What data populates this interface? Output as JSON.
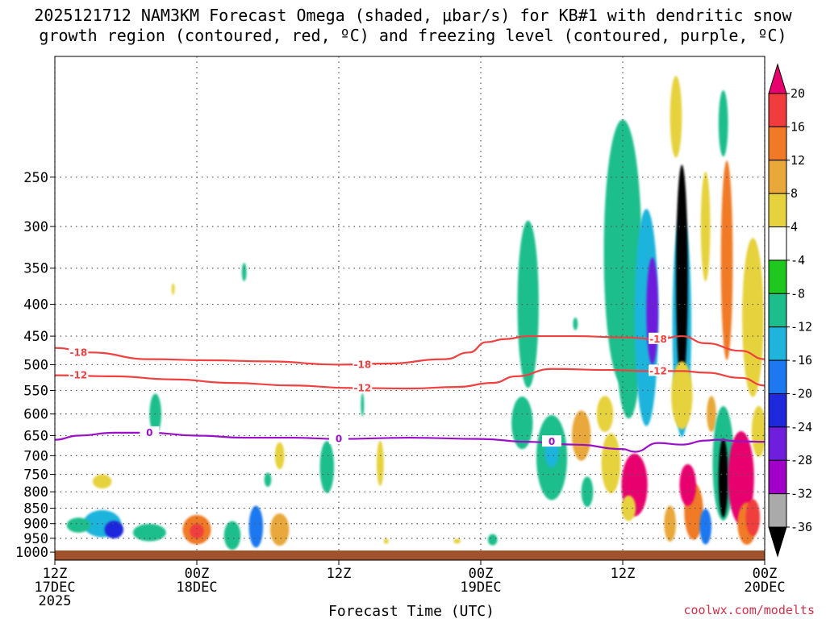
{
  "chart_data": {
    "type": "heatmap",
    "title_line1": "2025121712 NAM3KM Forecast Omega (shaded, μbar/s) for KB#1 with dendritic snow",
    "title_line2": "growth region (contoured, red, ºC) and freezing level (contoured, purple, ºC)",
    "xlabel": "Forecast Time (UTC)",
    "credit": "coolwx.com/modelts",
    "x_range_hours": [
      0,
      60
    ],
    "y_range_hpa": [
      1030,
      160
    ],
    "x_ticks": [
      {
        "hour": 0,
        "line1": "12Z",
        "line2": "17DEC",
        "line3": "2025"
      },
      {
        "hour": 12,
        "line1": "00Z",
        "line2": "18DEC",
        "line3": ""
      },
      {
        "hour": 24,
        "line1": "12Z",
        "line2": "",
        "line3": ""
      },
      {
        "hour": 36,
        "line1": "00Z",
        "line2": "19DEC",
        "line3": ""
      },
      {
        "hour": 48,
        "line1": "12Z",
        "line2": "",
        "line3": ""
      },
      {
        "hour": 60,
        "line1": "00Z",
        "line2": "20DEC",
        "line3": ""
      }
    ],
    "y_ticks": [
      "250",
      "300",
      "350",
      "400",
      "450",
      "500",
      "550",
      "600",
      "650",
      "700",
      "750",
      "800",
      "850",
      "900",
      "950",
      "1000"
    ],
    "colorbar": {
      "labels": [
        "20",
        "16",
        "12",
        "8",
        "4",
        "-4",
        "-8",
        "-12",
        "-16",
        "-20",
        "-24",
        "-28",
        "-32",
        "-36"
      ],
      "colors": [
        "#e8006e",
        "#f03c3c",
        "#f07a28",
        "#e8a83a",
        "#e6d23c",
        "#ffffff",
        "#1ec81e",
        "#1ebe8c",
        "#1eb4dc",
        "#1e78f0",
        "#1e28dc",
        "#6e1edc",
        "#a000c8",
        "#aaaaaa",
        "#000000"
      ]
    },
    "contours": {
      "dgz_minus18": {
        "label": "-18",
        "color": "#f04040",
        "points": [
          [
            0,
            470
          ],
          [
            3,
            478
          ],
          [
            8,
            490
          ],
          [
            13,
            492
          ],
          [
            18,
            494
          ],
          [
            24,
            500
          ],
          [
            28,
            498
          ],
          [
            33,
            490
          ],
          [
            35,
            478
          ],
          [
            36.5,
            460
          ],
          [
            38,
            455
          ],
          [
            40,
            450
          ],
          [
            44,
            450
          ],
          [
            48,
            452
          ],
          [
            51,
            455
          ],
          [
            53,
            450
          ],
          [
            55,
            462
          ],
          [
            58,
            475
          ],
          [
            60,
            490
          ]
        ]
      },
      "dgz_minus12": {
        "label": "-12",
        "color": "#f04040",
        "points": [
          [
            0,
            520
          ],
          [
            5,
            522
          ],
          [
            10,
            528
          ],
          [
            15,
            535
          ],
          [
            20,
            540
          ],
          [
            25,
            545
          ],
          [
            30,
            546
          ],
          [
            34,
            543
          ],
          [
            37,
            535
          ],
          [
            39,
            522
          ],
          [
            42,
            508
          ],
          [
            47,
            510
          ],
          [
            50,
            512
          ],
          [
            53,
            512
          ],
          [
            55,
            515
          ],
          [
            58,
            525
          ],
          [
            60,
            540
          ]
        ]
      },
      "freezing_level": {
        "label": "0",
        "color": "#9a10c8",
        "points": [
          [
            0,
            660
          ],
          [
            2,
            650
          ],
          [
            5,
            643
          ],
          [
            8,
            643
          ],
          [
            12,
            650
          ],
          [
            16,
            655
          ],
          [
            20,
            655
          ],
          [
            24,
            658
          ],
          [
            30,
            655
          ],
          [
            36,
            658
          ],
          [
            40,
            665
          ],
          [
            44,
            672
          ],
          [
            48,
            683
          ],
          [
            49,
            690
          ],
          [
            51,
            668
          ],
          [
            53,
            672
          ],
          [
            55,
            662
          ],
          [
            56,
            660
          ],
          [
            58,
            664
          ],
          [
            60,
            665
          ]
        ]
      }
    },
    "shaded_features": [
      {
        "t": 4,
        "p": 900,
        "dt": 1.6,
        "dp": 45,
        "v": -14
      },
      {
        "t": 5,
        "p": 920,
        "dt": 0.8,
        "dp": 30,
        "v": -22
      },
      {
        "t": 2,
        "p": 905,
        "dt": 1.0,
        "dp": 25,
        "v": -10
      },
      {
        "t": 8,
        "p": 930,
        "dt": 1.4,
        "dp": 30,
        "v": -9
      },
      {
        "t": 12,
        "p": 920,
        "dt": 1.2,
        "dp": 50,
        "v": 12
      },
      {
        "t": 12,
        "p": 925,
        "dt": 0.6,
        "dp": 25,
        "v": 18
      },
      {
        "t": 15,
        "p": 940,
        "dt": 0.7,
        "dp": 50,
        "v": -10
      },
      {
        "t": 17,
        "p": 910,
        "dt": 0.6,
        "dp": 70,
        "v": -18
      },
      {
        "t": 19,
        "p": 920,
        "dt": 0.8,
        "dp": 55,
        "v": 10
      },
      {
        "t": 4,
        "p": 770,
        "dt": 0.8,
        "dp": 20,
        "v": 5
      },
      {
        "t": 8.5,
        "p": 600,
        "dt": 0.5,
        "dp": 45,
        "v": -9
      },
      {
        "t": 16,
        "p": 355,
        "dt": 0.2,
        "dp": 12,
        "v": -9
      },
      {
        "t": 10,
        "p": 378,
        "dt": 0.1,
        "dp": 8,
        "v": 5
      },
      {
        "t": 19,
        "p": 700,
        "dt": 0.4,
        "dp": 35,
        "v": 5
      },
      {
        "t": 23,
        "p": 730,
        "dt": 0.6,
        "dp": 70,
        "v": -9
      },
      {
        "t": 27.5,
        "p": 720,
        "dt": 0.3,
        "dp": 60,
        "v": 5
      },
      {
        "t": 26,
        "p": 580,
        "dt": 0.1,
        "dp": 25,
        "v": -9
      },
      {
        "t": 18,
        "p": 765,
        "dt": 0.3,
        "dp": 20,
        "v": -9
      },
      {
        "t": 28,
        "p": 960,
        "dt": 0.2,
        "dp": 10,
        "v": 5
      },
      {
        "t": 34,
        "p": 960,
        "dt": 0.3,
        "dp": 8,
        "v": 5
      },
      {
        "t": 37,
        "p": 955,
        "dt": 0.4,
        "dp": 20,
        "v": -9
      },
      {
        "t": 40,
        "p": 400,
        "dt": 0.9,
        "dp": 120,
        "v": -9
      },
      {
        "t": 39.5,
        "p": 620,
        "dt": 0.9,
        "dp": 60,
        "v": -9
      },
      {
        "t": 42,
        "p": 705,
        "dt": 1.3,
        "dp": 110,
        "v": -10
      },
      {
        "t": 42,
        "p": 690,
        "dt": 0.6,
        "dp": 40,
        "v": -14
      },
      {
        "t": 44.5,
        "p": 650,
        "dt": 0.8,
        "dp": 60,
        "v": 8
      },
      {
        "t": 45,
        "p": 800,
        "dt": 0.5,
        "dp": 45,
        "v": -9
      },
      {
        "t": 44,
        "p": 430,
        "dt": 0.2,
        "dp": 10,
        "v": -9
      },
      {
        "t": 46.5,
        "p": 600,
        "dt": 0.7,
        "dp": 40,
        "v": 5
      },
      {
        "t": 47,
        "p": 720,
        "dt": 0.8,
        "dp": 80,
        "v": 7
      },
      {
        "t": 48,
        "p": 330,
        "dt": 1.6,
        "dp": 150,
        "v": -9
      },
      {
        "t": 48.5,
        "p": 470,
        "dt": 1.0,
        "dp": 120,
        "v": -9
      },
      {
        "t": 50,
        "p": 420,
        "dt": 1.0,
        "dp": 160,
        "v": -12
      },
      {
        "t": 50.5,
        "p": 410,
        "dt": 0.5,
        "dp": 80,
        "v": -24
      },
      {
        "t": 49,
        "p": 780,
        "dt": 1.1,
        "dp": 90,
        "v": 20
      },
      {
        "t": 48.5,
        "p": 850,
        "dt": 0.6,
        "dp": 40,
        "v": 5
      },
      {
        "t": 52,
        "p": 900,
        "dt": 0.5,
        "dp": 60,
        "v": 10
      },
      {
        "t": 53,
        "p": 430,
        "dt": 0.8,
        "dp": 170,
        "v": -14
      },
      {
        "t": 53,
        "p": 360,
        "dt": 0.5,
        "dp": 140,
        "v": -36
      },
      {
        "t": 53,
        "p": 560,
        "dt": 0.9,
        "dp": 70,
        "v": 6
      },
      {
        "t": 52.5,
        "p": 200,
        "dt": 0.5,
        "dp": 30,
        "v": 6
      },
      {
        "t": 54,
        "p": 860,
        "dt": 0.8,
        "dp": 90,
        "v": 14
      },
      {
        "t": 53.5,
        "p": 780,
        "dt": 0.7,
        "dp": 60,
        "v": 20
      },
      {
        "t": 55.5,
        "p": 600,
        "dt": 0.4,
        "dp": 40,
        "v": 8
      },
      {
        "t": 55,
        "p": 300,
        "dt": 0.4,
        "dp": 60,
        "v": 5
      },
      {
        "t": 56.5,
        "p": 720,
        "dt": 0.9,
        "dp": 150,
        "v": -10
      },
      {
        "t": 56.5,
        "p": 760,
        "dt": 0.4,
        "dp": 110,
        "v": -36
      },
      {
        "t": 55,
        "p": 910,
        "dt": 0.5,
        "dp": 60,
        "v": -16
      },
      {
        "t": 56.5,
        "p": 205,
        "dt": 0.4,
        "dp": 25,
        "v": -10
      },
      {
        "t": 56.8,
        "p": 340,
        "dt": 0.5,
        "dp": 120,
        "v": 12
      },
      {
        "t": 58,
        "p": 760,
        "dt": 1.1,
        "dp": 130,
        "v": 20
      },
      {
        "t": 58.5,
        "p": 900,
        "dt": 0.8,
        "dp": 70,
        "v": 14
      },
      {
        "t": 59,
        "p": 420,
        "dt": 0.9,
        "dp": 120,
        "v": 5
      },
      {
        "t": 59.5,
        "p": 640,
        "dt": 0.6,
        "dp": 60,
        "v": 6
      },
      {
        "t": 59,
        "p": 880,
        "dt": 0.6,
        "dp": 60,
        "v": 18
      }
    ]
  }
}
